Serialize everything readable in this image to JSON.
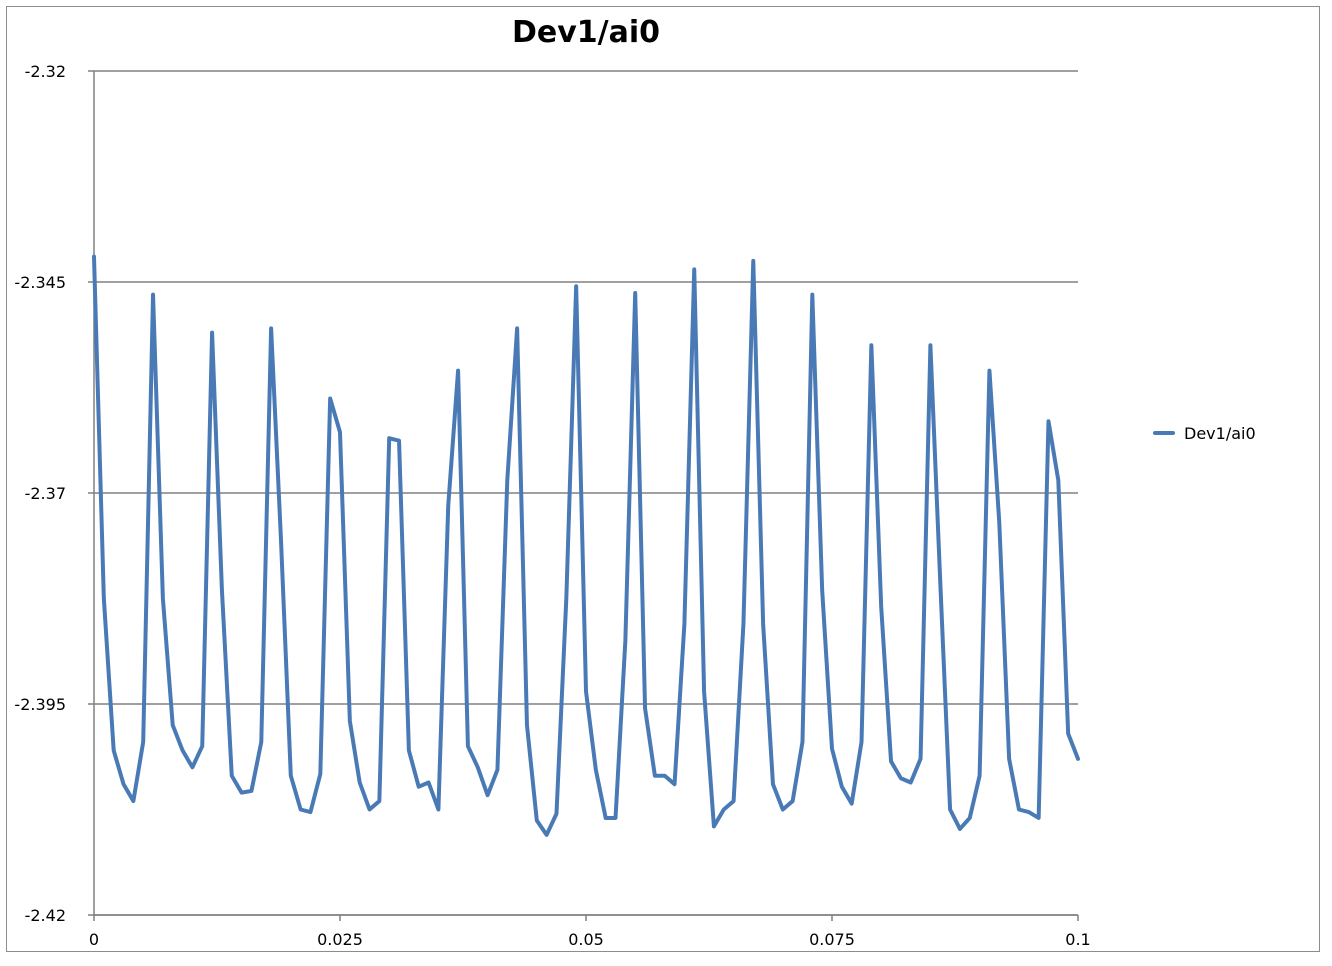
{
  "chart_data": {
    "type": "line",
    "title": "Dev1/ai0",
    "xlabel": "",
    "ylabel": "",
    "xlim": [
      0,
      0.1
    ],
    "ylim": [
      -2.42,
      -2.32
    ],
    "x_ticks": [
      0,
      0.025,
      0.05,
      0.075,
      0.1
    ],
    "x_tick_labels": [
      "0",
      "0.025",
      "0.05",
      "0.075",
      "0.1"
    ],
    "y_ticks": [
      -2.32,
      -2.345,
      -2.37,
      -2.395,
      -2.42
    ],
    "y_tick_labels": [
      "-2.32",
      "-2.345",
      -2.37,
      "-2.395",
      "-2.42"
    ],
    "grid": {
      "horizontal": true,
      "vertical": false
    },
    "legend_position": "right",
    "colors": {
      "series": "#4a7ab5",
      "grid": "#808080",
      "axis": "#808080",
      "text": "#000000"
    },
    "x": [
      0,
      0.001,
      0.002,
      0.003,
      0.004,
      0.005,
      0.006,
      0.007,
      0.008,
      0.009,
      0.01,
      0.011,
      0.012,
      0.013,
      0.014,
      0.015,
      0.016,
      0.017,
      0.018,
      0.019,
      0.02,
      0.021,
      0.022,
      0.023,
      0.024,
      0.025,
      0.026,
      0.027,
      0.028,
      0.029,
      0.03,
      0.031,
      0.032,
      0.033,
      0.034,
      0.035,
      0.036,
      0.037,
      0.038,
      0.039,
      0.04,
      0.041,
      0.042,
      0.043,
      0.044,
      0.045,
      0.046,
      0.047,
      0.048,
      0.049,
      0.05,
      0.051,
      0.052,
      0.053,
      0.054,
      0.055,
      0.056,
      0.057,
      0.058,
      0.059,
      0.06,
      0.061,
      0.062,
      0.063,
      0.064,
      0.065,
      0.066,
      0.067,
      0.068,
      0.069,
      0.07,
      0.071,
      0.072,
      0.073,
      0.074,
      0.075,
      0.076,
      0.077,
      0.078,
      0.079,
      0.08,
      0.081,
      0.082,
      0.083,
      0.084,
      0.085,
      0.086,
      0.087,
      0.088,
      0.089,
      0.09,
      0.091,
      0.092,
      0.093,
      0.094,
      0.095,
      0.096,
      0.097,
      0.098,
      0.099,
      0.1
    ],
    "series": [
      {
        "name": "Dev1/ai0",
        "values": [
          -2.342,
          -2.3825,
          -2.4005,
          -2.4045,
          -2.4065,
          -2.3995,
          -2.3465,
          -2.3825,
          -2.3975,
          -2.4005,
          -2.4025,
          -2.4,
          -2.351,
          -2.3815,
          -2.4035,
          -2.4055,
          -2.4053,
          -2.3995,
          -2.3505,
          -2.3755,
          -2.4035,
          -2.4075,
          -2.4078,
          -2.4033,
          -2.3588,
          -2.3628,
          -2.397,
          -2.4043,
          -2.4075,
          -2.4065,
          -2.3635,
          -2.3638,
          -2.4005,
          -2.4048,
          -2.4043,
          -2.4075,
          -2.3715,
          -2.3555,
          -2.4,
          -2.4025,
          -2.4058,
          -2.4028,
          -2.3685,
          -2.3505,
          -2.3975,
          -2.4088,
          -2.4105,
          -2.408,
          -2.3825,
          -2.3455,
          -2.3935,
          -2.4028,
          -2.4085,
          -2.4085,
          -2.3875,
          -2.3463,
          -2.3955,
          -2.4035,
          -2.4035,
          -2.4045,
          -2.3855,
          -2.3435,
          -2.3935,
          -2.4095,
          -2.4075,
          -2.4065,
          -2.3855,
          -2.3425,
          -2.3855,
          -2.4045,
          -2.4075,
          -2.4065,
          -2.3995,
          -2.3465,
          -2.3815,
          -2.4003,
          -2.4048,
          -2.4068,
          -2.3995,
          -2.3525,
          -2.3835,
          -2.4018,
          -2.4038,
          -2.4043,
          -2.4015,
          -2.3525,
          -2.3805,
          -2.4075,
          -2.4098,
          -2.4085,
          -2.4035,
          -2.3555,
          -2.3735,
          -2.4015,
          -2.4075,
          -2.4078,
          -2.4085,
          -2.3615,
          -2.3685,
          -2.3985,
          -2.4015
        ]
      }
    ]
  }
}
